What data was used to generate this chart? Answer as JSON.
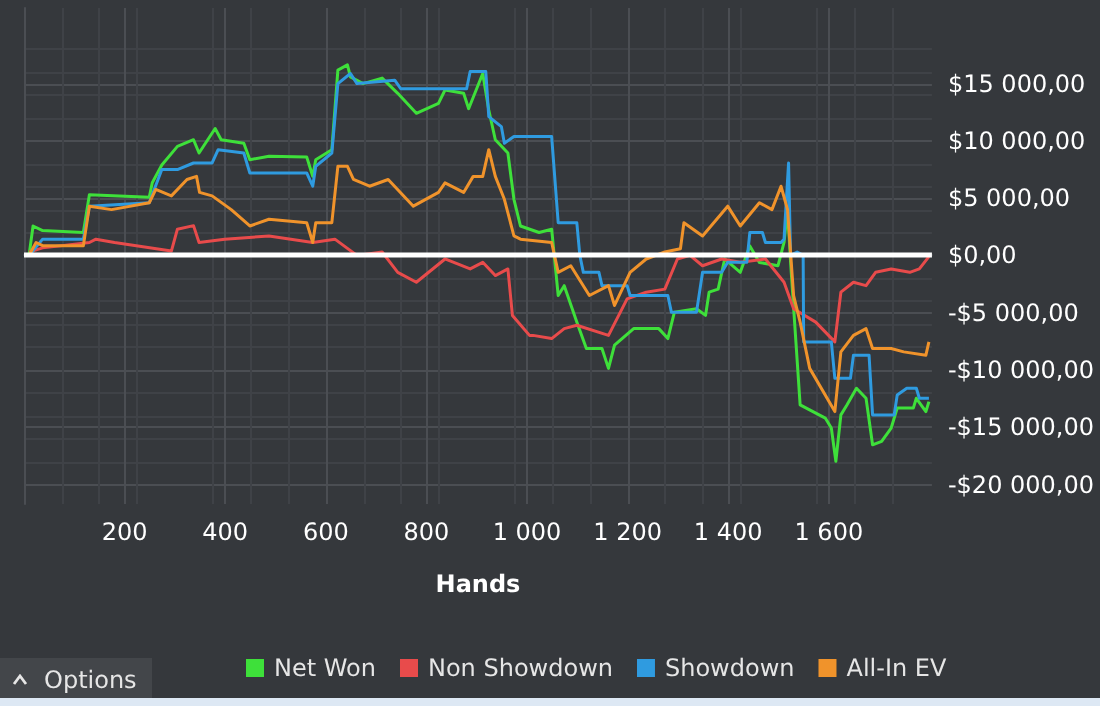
{
  "chart_data": {
    "type": "line",
    "xlabel": "Hands",
    "legend": "bottom",
    "grid": true,
    "marker": "none",
    "line_style": "solid",
    "xlim": [
      0,
      1805
    ],
    "xticks": [
      {
        "value": 200,
        "label": "200"
      },
      {
        "value": 400,
        "label": "400"
      },
      {
        "value": 600,
        "label": "600"
      },
      {
        "value": 800,
        "label": "800"
      },
      {
        "value": 1000,
        "label": "1 000"
      },
      {
        "value": 1200,
        "label": "1 200"
      },
      {
        "value": 1400,
        "label": "1 400"
      },
      {
        "value": 1600,
        "label": "1 600"
      }
    ],
    "ylim": [
      -21700,
      21600
    ],
    "yticks": [
      {
        "value": -20000,
        "label": "-$20 000,00"
      },
      {
        "value": -15000,
        "label": "-$15 000,00"
      },
      {
        "value": -10000,
        "label": "-$10 000,00"
      },
      {
        "value": -5000,
        "label": "-$5 000,00"
      },
      {
        "value": 0,
        "label": "$0,00"
      },
      {
        "value": 5000,
        "label": "$5 000,00"
      },
      {
        "value": 10000,
        "label": "$10 000,00"
      },
      {
        "value": 15000,
        "label": "$15 000,00"
      }
    ],
    "ref_lines": [
      {
        "axis": "y",
        "value": 0,
        "color": "#ffffff"
      }
    ],
    "annotations": [
      "Options"
    ],
    "series": [
      {
        "name": "Net Won",
        "color": "#3ee03a",
        "x": [
          10,
          18,
          37,
          118,
          130,
          249,
          255,
          274,
          305,
          337,
          348,
          380,
          392,
          437,
          449,
          487,
          562,
          574,
          580,
          612,
          624,
          643,
          649,
          674,
          712,
          743,
          780,
          824,
          837,
          874,
          884,
          912,
          924,
          937,
          962,
          974,
          987,
          1024,
          1049,
          1062,
          1074,
          1099,
          1118,
          1149,
          1162,
          1174,
          1212,
          1262,
          1280,
          1293,
          1337,
          1355,
          1362,
          1380,
          1393,
          1424,
          1443,
          1462,
          1499,
          1511,
          1518,
          1524,
          1543,
          1593,
          1605,
          1614,
          1624,
          1636,
          1655,
          1674,
          1687,
          1705,
          1724,
          1736,
          1768,
          1774,
          1793,
          1799
        ],
        "values": [
          0,
          2570,
          2170,
          2000,
          5300,
          5070,
          6340,
          7900,
          9520,
          10100,
          8940,
          11080,
          10100,
          9800,
          8360,
          8650,
          8600,
          6910,
          8360,
          9230,
          16180,
          16630,
          15590,
          15000,
          15480,
          14150,
          12410,
          13280,
          14440,
          14150,
          12810,
          15880,
          12700,
          10100,
          8940,
          4900,
          2570,
          2000,
          2290,
          -3500,
          -2640,
          -5820,
          -8130,
          -8130,
          -9860,
          -7840,
          -6390,
          -6390,
          -7260,
          -4950,
          -4650,
          -5230,
          -3210,
          -2940,
          -310,
          -1475,
          830,
          -610,
          -900,
          1130,
          4030,
          -610,
          -13050,
          -14200,
          -15070,
          -17970,
          -13920,
          -13050,
          -11600,
          -12470,
          -16530,
          -16230,
          -15070,
          -13330,
          -13330,
          -12470,
          -13630,
          -12760
        ]
      },
      {
        "name": "Non Showdown",
        "color": "#e84b4b",
        "x": [
          10,
          37,
          130,
          143,
          180,
          293,
          305,
          337,
          348,
          399,
          487,
          574,
          618,
          662,
          712,
          743,
          780,
          837,
          887,
          912,
          937,
          962,
          971,
          1005,
          1012,
          1049,
          1074,
          1099,
          1162,
          1199,
          1237,
          1274,
          1299,
          1324,
          1349,
          1387,
          1424,
          1474,
          1511,
          1530,
          1574,
          1612,
          1624,
          1649,
          1674,
          1693,
          1724,
          1761,
          1780,
          1799
        ],
        "values": [
          300,
          660,
          1130,
          1420,
          1130,
          380,
          2290,
          2600,
          1130,
          1420,
          1700,
          1130,
          1420,
          0,
          300,
          -1475,
          -2340,
          -310,
          -1180,
          -600,
          -1760,
          -1180,
          -5240,
          -6980,
          -6980,
          -7260,
          -6390,
          -6100,
          -6980,
          -3790,
          -3210,
          -2940,
          -310,
          0,
          -900,
          -310,
          -600,
          -310,
          -2340,
          -4650,
          -5820,
          -7550,
          -3210,
          -2340,
          -2640,
          -1475,
          -1180,
          -1475,
          -1180,
          -100
        ]
      },
      {
        "name": "Showdown",
        "color": "#2f9be0",
        "x": [
          10,
          37,
          118,
          130,
          249,
          274,
          305,
          337,
          374,
          386,
          437,
          449,
          562,
          574,
          580,
          612,
          624,
          649,
          662,
          737,
          749,
          880,
          887,
          918,
          924,
          949,
          955,
          974,
          1049,
          1062,
          1099,
          1105,
          1112,
          1143,
          1149,
          1199,
          1205,
          1280,
          1287,
          1337,
          1349,
          1387,
          1399,
          1437,
          1443,
          1468,
          1474,
          1505,
          1511,
          1520,
          1524,
          1537,
          1549,
          1550,
          1605,
          1612,
          1643,
          1649,
          1680,
          1687,
          1730,
          1736,
          1755,
          1774,
          1780,
          1799
        ],
        "values": [
          0,
          1420,
          1420,
          4300,
          4600,
          7500,
          7500,
          8070,
          8070,
          9230,
          8940,
          7200,
          7200,
          6040,
          7780,
          8940,
          15000,
          15880,
          15000,
          15300,
          14550,
          14550,
          16060,
          16060,
          12120,
          11250,
          9800,
          10380,
          10380,
          2860,
          2860,
          0,
          -1475,
          -1475,
          -2640,
          -2640,
          -3500,
          -3500,
          -4950,
          -4950,
          -1475,
          -1475,
          -600,
          -600,
          2000,
          2000,
          1130,
          1130,
          1420,
          8070,
          0,
          300,
          0,
          -7550,
          -7550,
          -10730,
          -10730,
          -8710,
          -8710,
          -13920,
          -13920,
          -12180,
          -11600,
          -11600,
          -12470,
          -12470
        ]
      },
      {
        "name": "All-In EV",
        "color": "#f0932b",
        "x": [
          10,
          24,
          37,
          118,
          130,
          174,
          249,
          262,
          293,
          324,
          343,
          349,
          374,
          412,
          449,
          487,
          562,
          574,
          580,
          612,
          624,
          643,
          655,
          687,
          724,
          774,
          824,
          837,
          874,
          893,
          912,
          924,
          937,
          955,
          974,
          987,
          1049,
          1062,
          1087,
          1124,
          1162,
          1174,
          1205,
          1237,
          1274,
          1305,
          1312,
          1349,
          1399,
          1424,
          1462,
          1487,
          1505,
          1518,
          1530,
          1543,
          1562,
          1612,
          1624,
          1649,
          1674,
          1687,
          1724,
          1749,
          1793,
          1799
        ],
        "values": [
          0,
          1130,
          850,
          850,
          4300,
          4000,
          4600,
          5760,
          5200,
          6630,
          6900,
          5500,
          5200,
          4000,
          2570,
          3160,
          2860,
          1130,
          2860,
          2860,
          7780,
          7780,
          6630,
          6040,
          6630,
          4300,
          5500,
          6340,
          5500,
          6900,
          6900,
          9230,
          6900,
          4900,
          1700,
          1420,
          1130,
          -1475,
          -900,
          -3500,
          -2640,
          -4370,
          -1475,
          -310,
          300,
          580,
          2860,
          1700,
          4300,
          2570,
          4600,
          4000,
          6040,
          4000,
          -3500,
          -5820,
          -9860,
          -13630,
          -8420,
          -6980,
          -6390,
          -8130,
          -8130,
          -8420,
          -8710,
          -7550
        ]
      }
    ]
  }
}
